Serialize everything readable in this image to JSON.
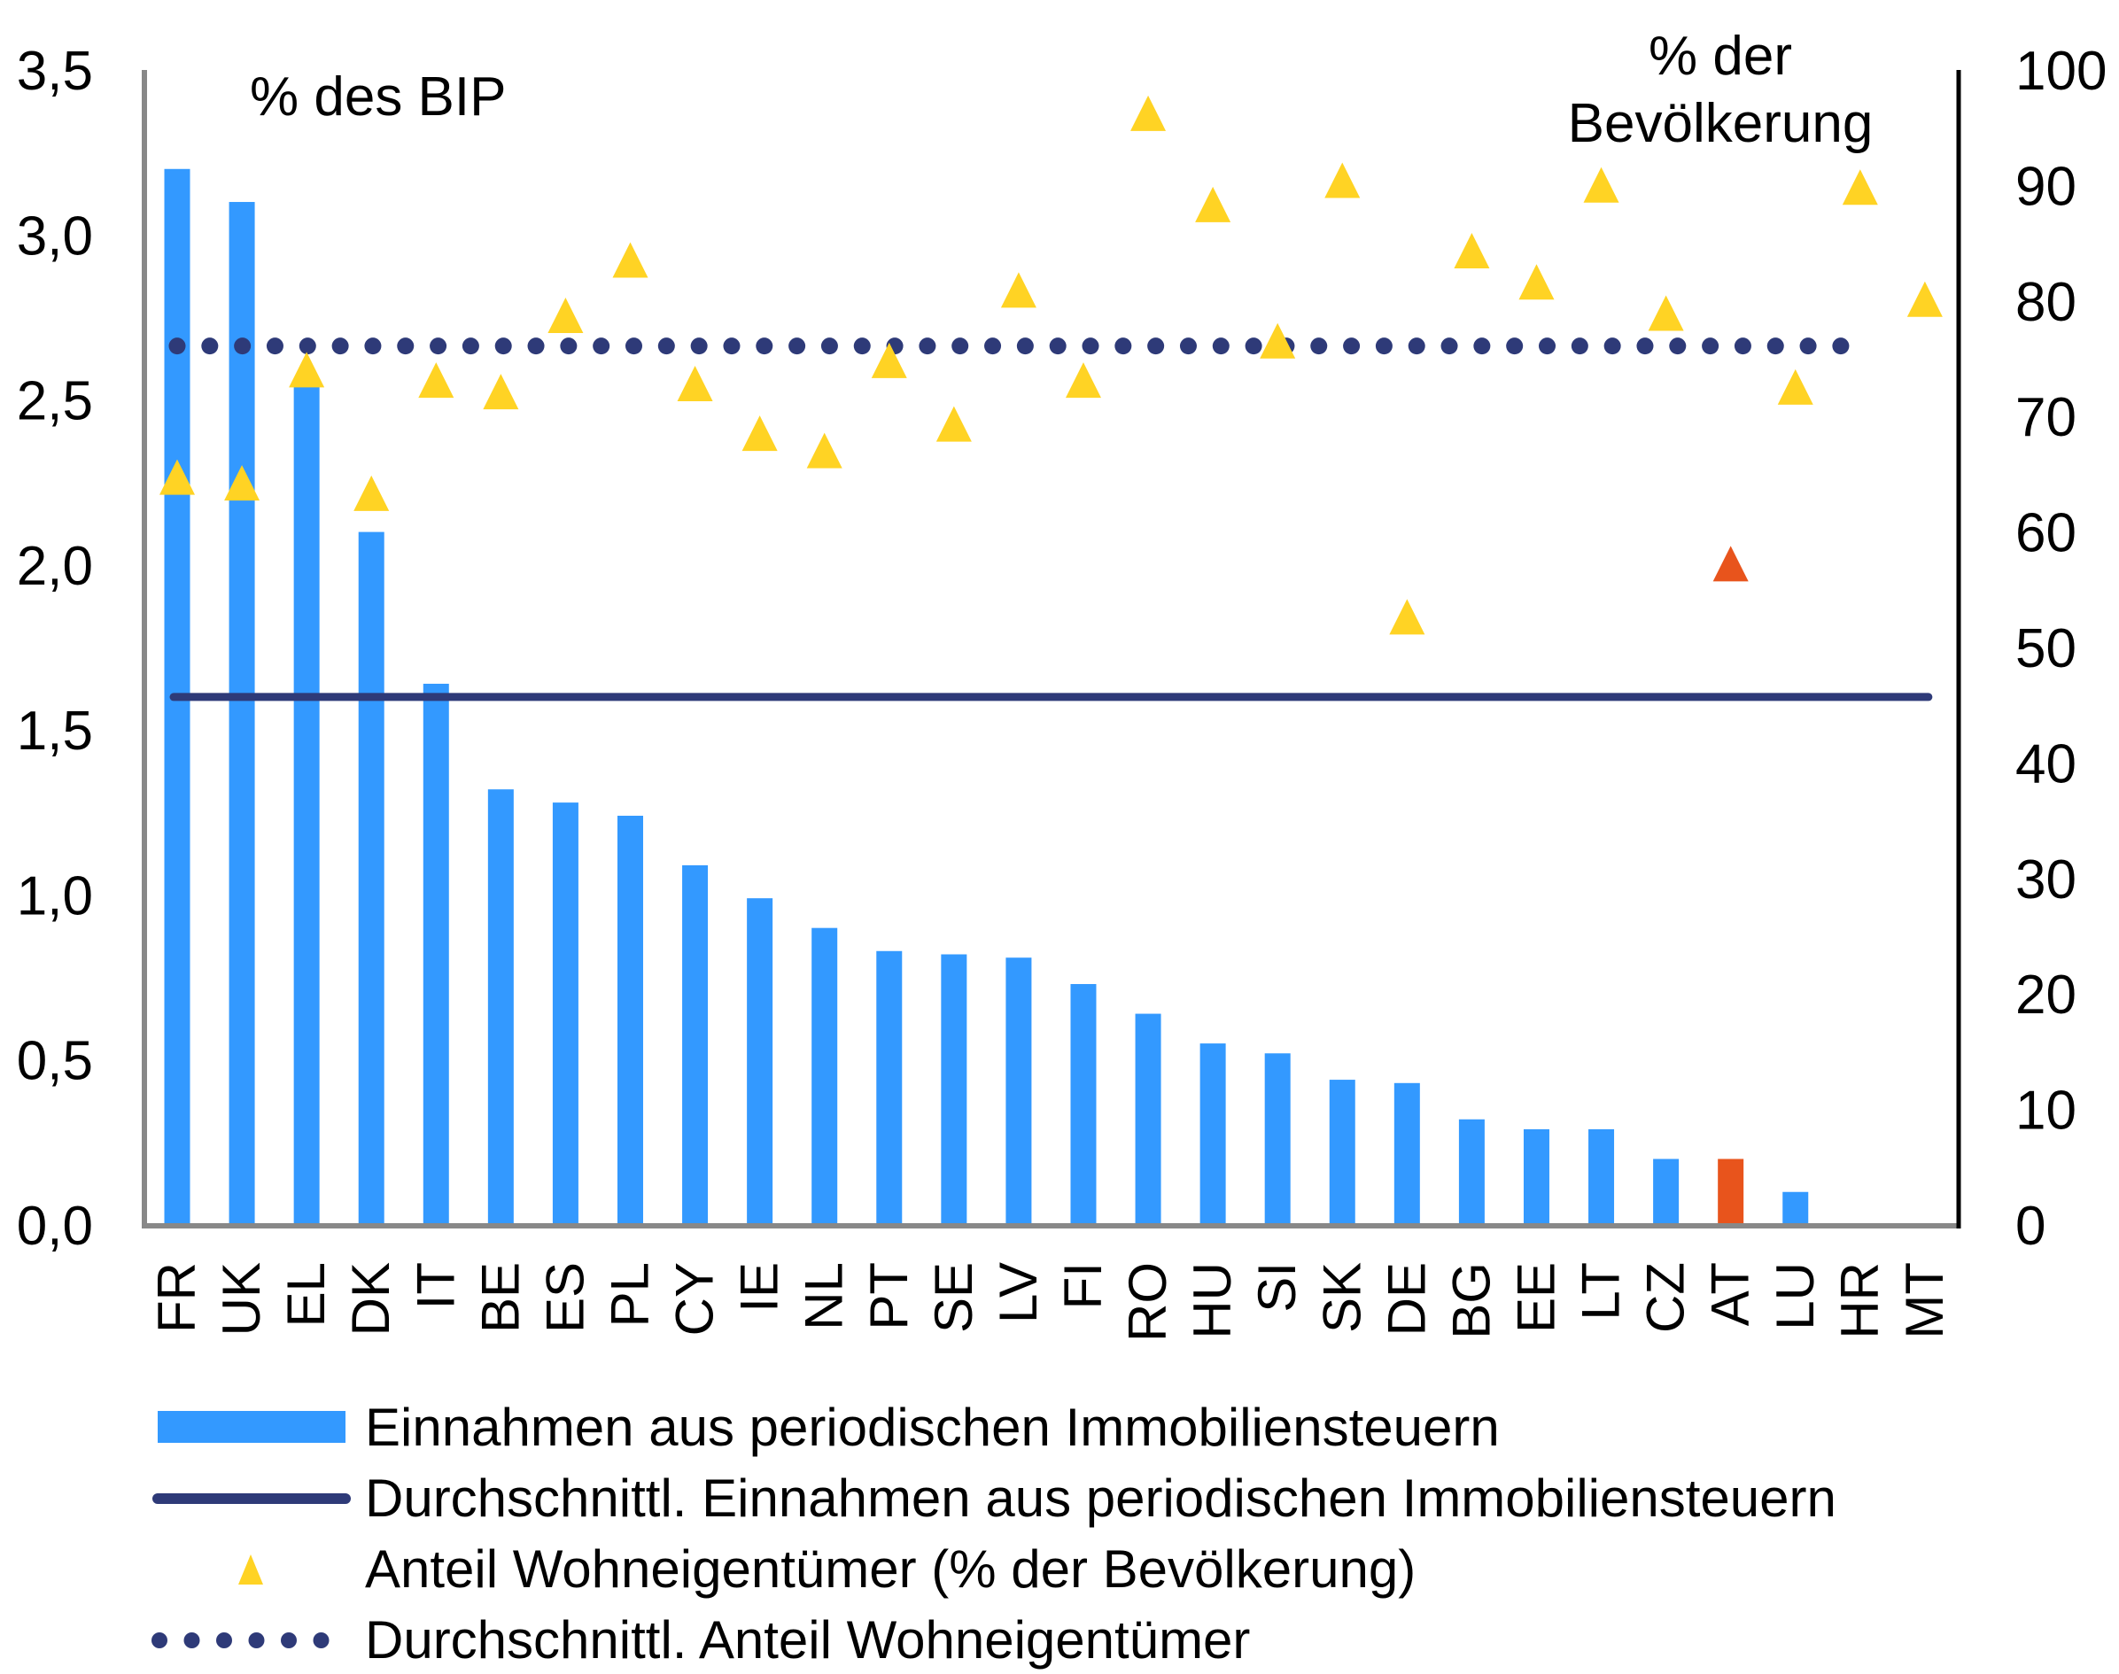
{
  "chart_data": {
    "type": "bar",
    "categories": [
      "FR",
      "UK",
      "EL",
      "DK",
      "IT",
      "BE",
      "ES",
      "PL",
      "CY",
      "IE",
      "NL",
      "PT",
      "SE",
      "LV",
      "FI",
      "RO",
      "HU",
      "SI",
      "SK",
      "DE",
      "BG",
      "EE",
      "LT",
      "CZ",
      "AT",
      "LU",
      "HR",
      "MT"
    ],
    "left_axis": {
      "label": "% des BIP",
      "ylim": [
        0,
        3.5
      ],
      "ticks": [
        "0,0",
        "0,5",
        "1,0",
        "1,5",
        "2,0",
        "2,5",
        "3,0",
        "3,5"
      ],
      "tick_values": [
        0,
        0.5,
        1.0,
        1.5,
        2.0,
        2.5,
        3.0,
        3.5
      ]
    },
    "right_axis": {
      "label_line1": "% der",
      "label_line2": "Bevölkerung",
      "ylim": [
        0,
        100
      ],
      "ticks": [
        "0",
        "10",
        "20",
        "30",
        "40",
        "50",
        "60",
        "70",
        "80",
        "90",
        "100"
      ],
      "tick_values": [
        0,
        10,
        20,
        30,
        40,
        50,
        60,
        70,
        80,
        90,
        100
      ]
    },
    "series": [
      {
        "name": "Einnahmen aus periodischen Immobiliensteuern",
        "type": "bar",
        "axis": "left",
        "color": "#3399ff",
        "highlight": {
          "category": "AT",
          "color": "#e8541c"
        },
        "values": [
          3.2,
          3.1,
          2.55,
          2.1,
          1.64,
          1.32,
          1.28,
          1.24,
          1.09,
          0.99,
          0.9,
          0.83,
          0.82,
          0.81,
          0.73,
          0.64,
          0.55,
          0.52,
          0.44,
          0.43,
          0.32,
          0.29,
          0.29,
          0.2,
          0.2,
          0.1,
          null,
          null
        ]
      },
      {
        "name": "Durchschnittl. Einnahmen aus periodischen Immobiliensteuern",
        "type": "line",
        "axis": "left",
        "color": "#2e3a78",
        "value": 1.6
      },
      {
        "name": "Anteil Wohneigentümer (% der Bevölkerung)",
        "type": "scatter",
        "marker": "triangle",
        "axis": "right",
        "color": "#ffd324",
        "highlight": {
          "category": "AT",
          "color": "#e8541c"
        },
        "values": [
          64.6,
          64.1,
          73.9,
          63.2,
          73.0,
          72.0,
          78.6,
          83.4,
          72.7,
          68.4,
          66.9,
          74.7,
          69.2,
          80.8,
          73.0,
          96.1,
          88.2,
          76.4,
          90.3,
          52.5,
          84.2,
          81.5,
          89.9,
          78.8,
          57.1,
          72.4,
          89.7,
          80.0
        ]
      },
      {
        "name": "Durchschnittl. Anteil Wohneigentümer",
        "type": "dotted-line",
        "axis": "right",
        "color": "#2e3a78",
        "value": 76.1
      }
    ],
    "legend": [
      {
        "label": "Einnahmen aus periodischen Immobiliensteuern",
        "symbol": "bar"
      },
      {
        "label": "Durchschnittl. Einnahmen aus periodischen Immobiliensteuern",
        "symbol": "line"
      },
      {
        "label": "Anteil Wohneigentümer (% der Bevölkerung)",
        "symbol": "triangle"
      },
      {
        "label": "Durchschnittl. Anteil Wohneigentümer",
        "symbol": "dots"
      }
    ],
    "legend_position": "bottom",
    "grid": false
  }
}
